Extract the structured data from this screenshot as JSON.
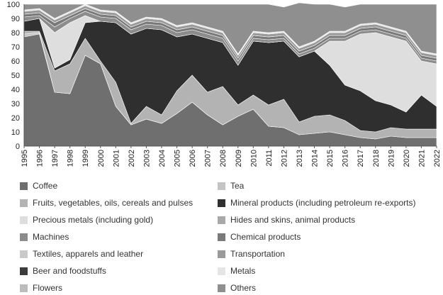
{
  "chart_data": {
    "type": "area",
    "stacked": true,
    "title": "",
    "xlabel": "",
    "ylabel": "",
    "ylim": [
      0,
      100
    ],
    "yticks": [
      0,
      10,
      20,
      30,
      40,
      50,
      60,
      70,
      80,
      90,
      100
    ],
    "grid": false,
    "legend_position": "bottom",
    "x": [
      "1995",
      "1996",
      "1997",
      "1998",
      "1999",
      "2000",
      "2001",
      "2002",
      "2003",
      "2004",
      "2005",
      "2006",
      "2007",
      "2008",
      "2009",
      "2010",
      "2011",
      "2012",
      "2013",
      "2014",
      "2015",
      "2016",
      "2017",
      "2018",
      "2019",
      "2020",
      "2021",
      "2022"
    ],
    "series": [
      {
        "name": "Coffee",
        "color": "#6f6f6f",
        "values": [
          77,
          79,
          38,
          37,
          64,
          58,
          28,
          15,
          19,
          16,
          23,
          31,
          22,
          15,
          21,
          26,
          14,
          13,
          8,
          9,
          10,
          8,
          6,
          5,
          7,
          6,
          6,
          6
        ]
      },
      {
        "name": "Tea",
        "color": "#c4c4c4",
        "values": [
          2,
          1,
          0,
          0,
          0,
          0,
          0,
          0,
          0,
          0,
          0,
          0,
          0,
          0,
          0,
          0,
          0,
          0,
          0,
          0,
          0,
          0,
          0,
          0,
          0,
          0,
          0,
          0
        ]
      },
      {
        "name": "Fruits, vegetables, oils, cereals and pulses",
        "color": "#b3b3b3",
        "values": [
          2,
          1,
          15,
          21,
          12,
          2,
          17,
          1,
          9,
          6,
          16,
          19,
          16,
          27,
          8,
          10,
          15,
          20,
          9,
          12,
          12,
          10,
          5,
          5,
          6,
          6,
          6,
          6
        ]
      },
      {
        "name": "Mineral products (including petroleum re-exports)",
        "color": "#2f2f2f",
        "values": [
          7,
          9,
          2,
          3,
          11,
          28,
          42,
          63,
          55,
          60,
          38,
          29,
          38,
          31,
          28,
          38,
          44,
          41,
          46,
          46,
          35,
          25,
          28,
          22,
          16,
          12,
          24,
          16
        ]
      },
      {
        "name": "Precious metals (including gold)",
        "color": "#dedede",
        "values": [
          0,
          0,
          25,
          26,
          5,
          0,
          0,
          0,
          0,
          0,
          0,
          0,
          0,
          0,
          0,
          0,
          0,
          0,
          0,
          0,
          17,
          31,
          40,
          48,
          48,
          50,
          24,
          30
        ]
      },
      {
        "name": "Hides and skins, animal products",
        "color": "#a9a9a9",
        "values": [
          0,
          0,
          0,
          0,
          0,
          0,
          0,
          0,
          0,
          0,
          0,
          0,
          0,
          0,
          0,
          0,
          0,
          0,
          0,
          0,
          0,
          0,
          0,
          0,
          0,
          0,
          0,
          0
        ]
      },
      {
        "name": "Machines",
        "color": "#8c8c8c",
        "values": [
          3,
          2,
          4,
          3,
          3,
          3,
          3,
          3,
          3,
          3,
          3,
          3,
          3,
          3,
          3,
          2,
          2,
          2,
          2,
          2,
          2,
          2,
          2,
          2,
          2,
          2,
          2,
          2
        ]
      },
      {
        "name": "Chemical products",
        "color": "#7a7a7a",
        "values": [
          2,
          2,
          3,
          2,
          2,
          2,
          2,
          2,
          2,
          2,
          2,
          2,
          2,
          2,
          2,
          2,
          2,
          2,
          2,
          2,
          2,
          2,
          2,
          2,
          2,
          2,
          2,
          2
        ]
      },
      {
        "name": "Textiles, apparels and leather",
        "color": "#c9c9c9",
        "values": [
          0,
          0,
          0,
          0,
          0,
          0,
          0,
          0,
          0,
          0,
          0,
          0,
          0,
          0,
          0,
          0,
          0,
          0,
          0,
          0,
          0,
          0,
          0,
          0,
          0,
          0,
          0,
          0
        ]
      },
      {
        "name": "Transportation",
        "color": "#9a9a9a",
        "values": [
          2,
          2,
          2,
          2,
          2,
          2,
          2,
          2,
          2,
          2,
          2,
          2,
          2,
          2,
          2,
          2,
          2,
          2,
          2,
          2,
          2,
          2,
          2,
          2,
          2,
          2,
          2,
          2
        ]
      },
      {
        "name": "Beer and foodstuffs",
        "color": "#3c3c3c",
        "values": [
          0,
          0,
          0,
          0,
          0,
          0,
          0,
          0,
          0,
          0,
          0,
          0,
          0,
          0,
          0,
          0,
          0,
          0,
          0,
          0,
          0,
          0,
          0,
          0,
          0,
          0,
          0,
          0
        ]
      },
      {
        "name": "Metals",
        "color": "#e5e5e5",
        "values": [
          1,
          1,
          1,
          1,
          1,
          1,
          1,
          1,
          1,
          1,
          1,
          1,
          1,
          1,
          1,
          1,
          1,
          1,
          1,
          1,
          1,
          1,
          1,
          1,
          1,
          1,
          1,
          1
        ]
      },
      {
        "name": "Flowers",
        "color": "#bdbdbd",
        "values": [
          0,
          0,
          0,
          0,
          0,
          0,
          0,
          0,
          0,
          0,
          0,
          0,
          0,
          0,
          0,
          0,
          0,
          0,
          0,
          0,
          0,
          0,
          0,
          0,
          0,
          0,
          0,
          0
        ]
      },
      {
        "name": "Others",
        "color": "#8f8f8f",
        "values": [
          4,
          3,
          10,
          5,
          0,
          4,
          5,
          13,
          9,
          10,
          15,
          13,
          16,
          19,
          35,
          19,
          20,
          17,
          31,
          26,
          19,
          17,
          14,
          13,
          16,
          19,
          33,
          35
        ]
      }
    ]
  }
}
